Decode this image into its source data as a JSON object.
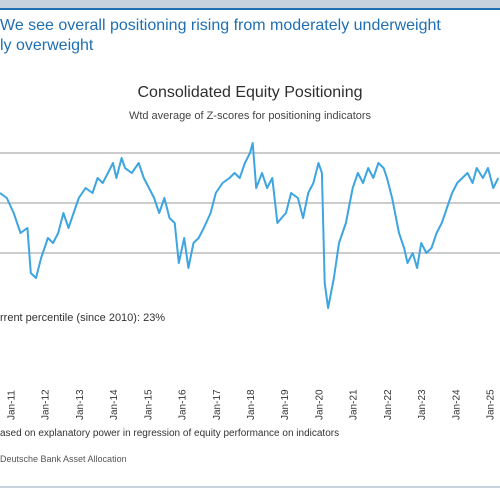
{
  "headline": {
    "line1": "We see overall positioning rising from moderately underweight",
    "line2": "ly overweight"
  },
  "chart_data": {
    "type": "line",
    "title": "Consolidated Equity Positioning",
    "subtitle": "Wtd average of Z-scores for positioning indicators",
    "xlabel": "",
    "ylabel": "",
    "x_ticks": [
      "Jan-11",
      "Jan-12",
      "Jan-13",
      "Jan-14",
      "Jan-15",
      "Jan-16",
      "Jan-17",
      "Jan-18",
      "Jan-19",
      "Jan-20",
      "Jan-21",
      "Jan-22",
      "Jan-23",
      "Jan-24",
      "Jan-25"
    ],
    "xlim": [
      2010.7,
      2025.3
    ],
    "ylim": [
      -2.5,
      1.5
    ],
    "reference_lines": [
      1,
      0,
      -1
    ],
    "grid": false,
    "legend": "none",
    "series": [
      {
        "color": "#3da5e0",
        "points": [
          [
            2010.7,
            0.2
          ],
          [
            2010.9,
            0.1
          ],
          [
            2011.1,
            -0.2
          ],
          [
            2011.3,
            -0.6
          ],
          [
            2011.5,
            -0.5
          ],
          [
            2011.6,
            -1.4
          ],
          [
            2011.75,
            -1.5
          ],
          [
            2011.9,
            -1.1
          ],
          [
            2012.1,
            -0.7
          ],
          [
            2012.25,
            -0.8
          ],
          [
            2012.4,
            -0.6
          ],
          [
            2012.55,
            -0.2
          ],
          [
            2012.7,
            -0.5
          ],
          [
            2012.85,
            -0.2
          ],
          [
            2013.0,
            0.1
          ],
          [
            2013.2,
            0.3
          ],
          [
            2013.4,
            0.2
          ],
          [
            2013.55,
            0.5
          ],
          [
            2013.7,
            0.4
          ],
          [
            2013.85,
            0.6
          ],
          [
            2014.0,
            0.8
          ],
          [
            2014.1,
            0.5
          ],
          [
            2014.25,
            0.9
          ],
          [
            2014.35,
            0.7
          ],
          [
            2014.55,
            0.6
          ],
          [
            2014.75,
            0.8
          ],
          [
            2014.9,
            0.5
          ],
          [
            2015.05,
            0.3
          ],
          [
            2015.2,
            0.1
          ],
          [
            2015.35,
            -0.2
          ],
          [
            2015.5,
            0.1
          ],
          [
            2015.65,
            -0.3
          ],
          [
            2015.8,
            -0.4
          ],
          [
            2015.92,
            -1.2
          ],
          [
            2016.08,
            -0.7
          ],
          [
            2016.2,
            -1.3
          ],
          [
            2016.35,
            -0.8
          ],
          [
            2016.5,
            -0.7
          ],
          [
            2016.65,
            -0.5
          ],
          [
            2016.85,
            -0.2
          ],
          [
            2017.0,
            0.2
          ],
          [
            2017.2,
            0.4
          ],
          [
            2017.4,
            0.5
          ],
          [
            2017.55,
            0.6
          ],
          [
            2017.7,
            0.5
          ],
          [
            2017.85,
            0.8
          ],
          [
            2018.0,
            1.0
          ],
          [
            2018.08,
            1.2
          ],
          [
            2018.18,
            0.3
          ],
          [
            2018.35,
            0.6
          ],
          [
            2018.5,
            0.3
          ],
          [
            2018.65,
            0.5
          ],
          [
            2018.8,
            -0.4
          ],
          [
            2018.92,
            -0.3
          ],
          [
            2019.05,
            -0.2
          ],
          [
            2019.2,
            0.2
          ],
          [
            2019.4,
            0.1
          ],
          [
            2019.55,
            -0.3
          ],
          [
            2019.7,
            0.2
          ],
          [
            2019.85,
            0.4
          ],
          [
            2020.0,
            0.8
          ],
          [
            2020.1,
            0.6
          ],
          [
            2020.18,
            -1.6
          ],
          [
            2020.28,
            -2.1
          ],
          [
            2020.45,
            -1.5
          ],
          [
            2020.6,
            -0.8
          ],
          [
            2020.8,
            -0.4
          ],
          [
            2021.0,
            0.3
          ],
          [
            2021.15,
            0.6
          ],
          [
            2021.3,
            0.4
          ],
          [
            2021.45,
            0.7
          ],
          [
            2021.6,
            0.5
          ],
          [
            2021.75,
            0.8
          ],
          [
            2021.9,
            0.7
          ],
          [
            2022.0,
            0.5
          ],
          [
            2022.15,
            0.1
          ],
          [
            2022.35,
            -0.6
          ],
          [
            2022.5,
            -0.9
          ],
          [
            2022.6,
            -1.2
          ],
          [
            2022.75,
            -1.0
          ],
          [
            2022.88,
            -1.3
          ],
          [
            2023.0,
            -0.8
          ],
          [
            2023.15,
            -1.0
          ],
          [
            2023.3,
            -0.9
          ],
          [
            2023.45,
            -0.6
          ],
          [
            2023.6,
            -0.4
          ],
          [
            2023.75,
            -0.1
          ],
          [
            2023.9,
            0.2
          ],
          [
            2024.05,
            0.4
          ],
          [
            2024.2,
            0.5
          ],
          [
            2024.35,
            0.6
          ],
          [
            2024.5,
            0.4
          ],
          [
            2024.62,
            0.7
          ],
          [
            2024.8,
            0.5
          ],
          [
            2024.95,
            0.7
          ],
          [
            2025.1,
            0.3
          ],
          [
            2025.25,
            0.5
          ]
        ]
      }
    ],
    "annotation": "rrent percentile (since 2010): 23%",
    "footnote": "ased on explanatory power in regression of equity performance on indicators",
    "source": "Deutsche Bank Asset Allocation"
  }
}
